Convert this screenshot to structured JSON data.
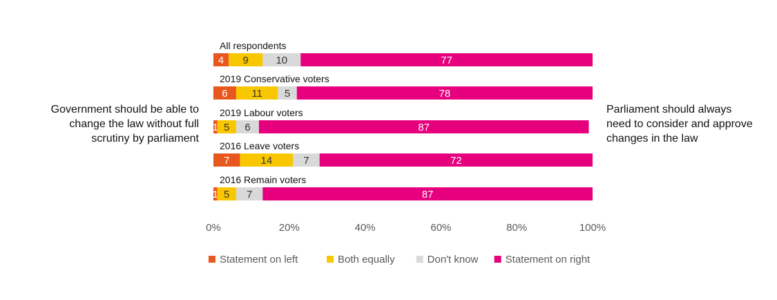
{
  "left_statement": {
    "lines": [
      "Government should be able to",
      "change the law without full",
      "scrutiny by parliament"
    ]
  },
  "right_statement": {
    "lines": [
      "Parliament should always",
      "need to consider and approve",
      "changes in the law"
    ]
  },
  "chart_data": {
    "type": "bar",
    "orientation": "horizontal",
    "stacked": true,
    "categories": [
      "All respondents",
      "2019 Conservative voters",
      "2019 Labour voters",
      "2016 Leave voters",
      "2016 Remain voters"
    ],
    "series": [
      {
        "name": "Statement on left",
        "color": "#E8571E",
        "values": [
          4,
          6,
          1,
          7,
          1
        ]
      },
      {
        "name": "Both equally",
        "color": "#F9C700",
        "values": [
          9,
          11,
          5,
          14,
          5
        ]
      },
      {
        "name": "Don't know",
        "color": "#D9D9D9",
        "values": [
          10,
          5,
          6,
          7,
          7
        ]
      },
      {
        "name": "Statement on right",
        "color": "#E6007E",
        "values": [
          77,
          78,
          87,
          72,
          87
        ]
      }
    ],
    "label_colors": {
      "Statement on left": "#ffffff",
      "Both equally": "#333333",
      "Don't know": "#333333",
      "Statement on right": "#ffffff"
    },
    "xlim": [
      0,
      100
    ],
    "xticks": [
      "0%",
      "20%",
      "40%",
      "60%",
      "80%",
      "100%"
    ],
    "legend_position": "bottom",
    "grid": false
  }
}
